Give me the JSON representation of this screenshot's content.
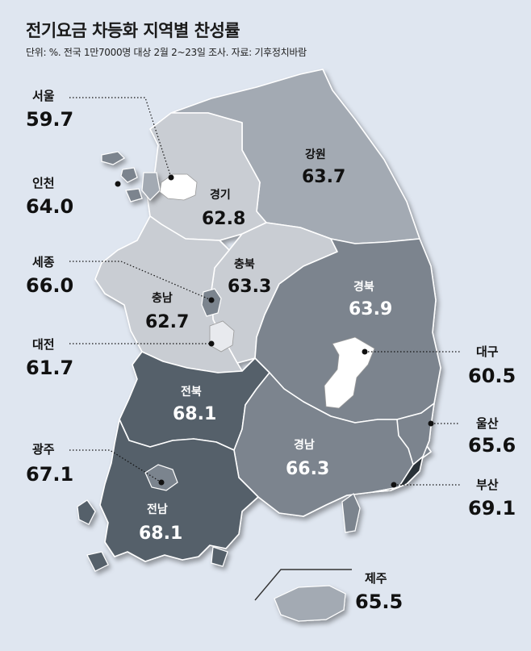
{
  "title": "전기요금 차등화 지역별 찬성률",
  "subtitle": "단위: %. 전국 1만7000명 대상 2월 2~23일 조사. 자료: 기후정치바람",
  "regions": {
    "seoul": {
      "name": "서울",
      "value": "59.7"
    },
    "incheon": {
      "name": "인천",
      "value": "64.0"
    },
    "sejong": {
      "name": "세종",
      "value": "66.0"
    },
    "daejeon": {
      "name": "대전",
      "value": "61.7"
    },
    "gwangju": {
      "name": "광주",
      "value": "67.1"
    },
    "gangwon": {
      "name": "강원",
      "value": "63.7"
    },
    "gyeonggi": {
      "name": "경기",
      "value": "62.8"
    },
    "chungbuk": {
      "name": "충북",
      "value": "63.3"
    },
    "chungnam": {
      "name": "충남",
      "value": "62.7"
    },
    "gyeongbuk": {
      "name": "경북",
      "value": "63.9"
    },
    "jeonbuk": {
      "name": "전북",
      "value": "68.1"
    },
    "gyeongnam": {
      "name": "경남",
      "value": "66.3"
    },
    "jeonnam": {
      "name": "전남",
      "value": "68.1"
    },
    "daegu": {
      "name": "대구",
      "value": "60.5"
    },
    "ulsan": {
      "name": "울산",
      "value": "65.6"
    },
    "busan": {
      "name": "부산",
      "value": "69.1"
    },
    "jeju": {
      "name": "제주",
      "value": "65.5"
    }
  },
  "colors": {
    "background": "#dfe6f0",
    "light": "#c9cdd3",
    "medium": "#a3aab3",
    "medium_dark": "#7b848e",
    "dark": "#55606b",
    "darkest": "#2a3038",
    "white": "#ffffff"
  }
}
